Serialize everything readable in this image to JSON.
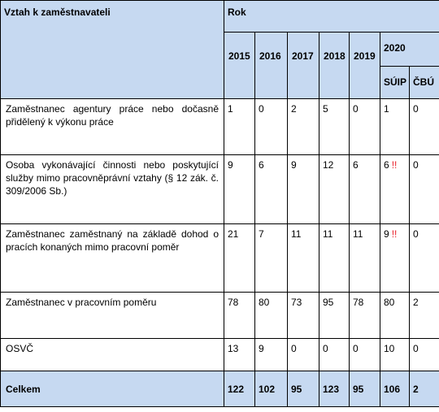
{
  "header": {
    "col_relation": "Vztah k zaměstnavateli",
    "col_year": "Rok",
    "years": [
      "2015",
      "2016",
      "2017",
      "2018",
      "2019",
      "2020"
    ],
    "sub_2020": [
      "SÚIP",
      "ČBÚ"
    ]
  },
  "rows": [
    {
      "label": "Zaměstnanec agentury práce nebo dočasně přidělený k výkonu práce",
      "values": [
        "1",
        "0",
        "2",
        "5",
        "0",
        "1",
        "0"
      ],
      "mark": ""
    },
    {
      "label": "Osoba vykonávající činnosti nebo poskytující služby mimo pracovněprávní vztahy (§ 12 zák. č. 309/2006 Sb.)",
      "values": [
        "9",
        "6",
        "9",
        "12",
        "6",
        "6",
        "0"
      ],
      "mark": "!!"
    },
    {
      "label": "Zaměstnanec zaměstnaný na základě dohod o pracích konaných mimo pracovní poměr",
      "values": [
        "21",
        "7",
        "11",
        "11",
        "11",
        "9",
        "0"
      ],
      "mark": "!!"
    },
    {
      "label": "Zaměstnanec v pracovním poměru",
      "values": [
        "78",
        "80",
        "73",
        "95",
        "78",
        "80",
        "2"
      ],
      "mark": ""
    },
    {
      "label": "OSVČ",
      "values": [
        "13",
        "9",
        "0",
        "0",
        "0",
        "10",
        "0"
      ],
      "mark": ""
    }
  ],
  "total": {
    "label": "Celkem",
    "values": [
      "122",
      "102",
      "95",
      "123",
      "95",
      "106",
      "2"
    ]
  },
  "colors": {
    "header_bg": "#c6d9f1",
    "mark": "#e8202a"
  }
}
